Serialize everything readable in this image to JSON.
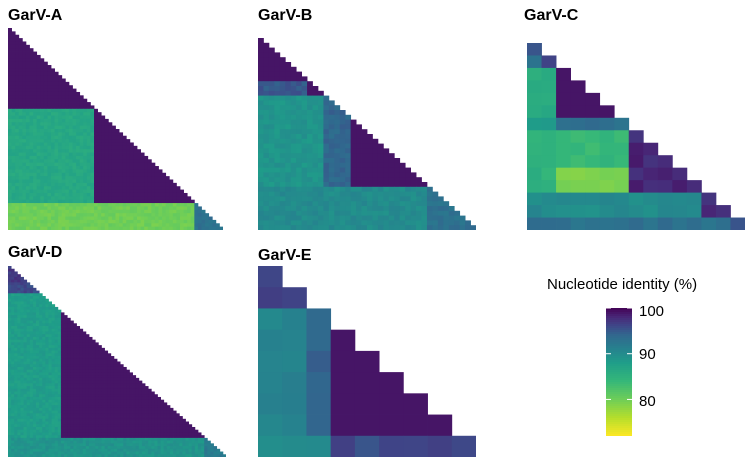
{
  "chart_data": {
    "type": "heatmap",
    "description_text": "Pairwise nucleotide identity heatmaps (lower triangle) for five GarV clades",
    "colormap": {
      "name": "viridis",
      "stops": [
        {
          "value": 72,
          "color": "#fde725"
        },
        {
          "value": 76,
          "color": "#b5de2b"
        },
        {
          "value": 80,
          "color": "#6ece58"
        },
        {
          "value": 84,
          "color": "#35b779"
        },
        {
          "value": 88,
          "color": "#1f9e89"
        },
        {
          "value": 91,
          "color": "#26828e"
        },
        {
          "value": 94,
          "color": "#31688e"
        },
        {
          "value": 96,
          "color": "#3e4989"
        },
        {
          "value": 98,
          "color": "#482878"
        },
        {
          "value": 100,
          "color": "#440154"
        }
      ]
    },
    "legend": {
      "title": "Nucleotide identity (%)",
      "min": 72,
      "max": 100,
      "ticks": [
        100,
        90,
        80
      ],
      "placement": "bottom-right"
    },
    "panels": [
      {
        "title": "GarV-A",
        "n": 60,
        "blocks": [
          {
            "row_start": 0,
            "row_end": 24,
            "col_start": 0,
            "col_end": 24,
            "value": 99
          },
          {
            "row_start": 24,
            "row_end": 52,
            "col_start": 0,
            "col_end": 24,
            "value": 86.5
          },
          {
            "row_start": 24,
            "row_end": 52,
            "col_start": 24,
            "col_end": 52,
            "value": 99
          },
          {
            "row_start": 52,
            "row_end": 60,
            "col_start": 0,
            "col_end": 52,
            "value": 80
          },
          {
            "row_start": 52,
            "row_end": 60,
            "col_start": 52,
            "col_end": 60,
            "value": 93
          }
        ]
      },
      {
        "title": "GarV-B",
        "n": 40,
        "blocks": [
          {
            "row_start": 0,
            "row_end": 9,
            "col_start": 0,
            "col_end": 9,
            "value": 99
          },
          {
            "row_start": 9,
            "row_end": 12,
            "col_start": 0,
            "col_end": 9,
            "value": 95
          },
          {
            "row_start": 9,
            "row_end": 12,
            "col_start": 9,
            "col_end": 12,
            "value": 99
          },
          {
            "row_start": 12,
            "row_end": 31,
            "col_start": 0,
            "col_end": 12,
            "value": 89
          },
          {
            "row_start": 12,
            "row_end": 31,
            "col_start": 12,
            "col_end": 17,
            "value": 94
          },
          {
            "row_start": 12,
            "row_end": 31,
            "col_start": 17,
            "col_end": 31,
            "value": 99
          },
          {
            "row_start": 31,
            "row_end": 40,
            "col_start": 0,
            "col_end": 31,
            "value": 90
          },
          {
            "row_start": 31,
            "row_end": 40,
            "col_start": 31,
            "col_end": 40,
            "value": 93
          }
        ]
      },
      {
        "title": "GarV-C",
        "n": 15,
        "blocks": [
          {
            "row_start": 0,
            "row_end": 1,
            "col_start": 0,
            "col_end": 1,
            "value": 96
          },
          {
            "row_start": 1,
            "row_end": 2,
            "col_start": 0,
            "col_end": 1,
            "value": 92
          },
          {
            "row_start": 1,
            "row_end": 2,
            "col_start": 1,
            "col_end": 2,
            "value": 96
          },
          {
            "row_start": 2,
            "row_end": 6,
            "col_start": 0,
            "col_end": 2,
            "value": 86
          },
          {
            "row_start": 2,
            "row_end": 6,
            "col_start": 2,
            "col_end": 6,
            "value": 99
          },
          {
            "row_start": 6,
            "row_end": 7,
            "col_start": 0,
            "col_end": 2,
            "value": 88
          },
          {
            "row_start": 6,
            "row_end": 7,
            "col_start": 2,
            "col_end": 7,
            "value": 93
          },
          {
            "row_start": 7,
            "row_end": 12,
            "col_start": 0,
            "col_end": 2,
            "value": 85
          },
          {
            "row_start": 7,
            "row_end": 12,
            "col_start": 2,
            "col_end": 7,
            "value": 84
          },
          {
            "row_start": 7,
            "row_end": 12,
            "col_start": 7,
            "col_end": 12,
            "value": 98
          },
          {
            "row_start": 10,
            "row_end": 12,
            "col_start": 2,
            "col_end": 7,
            "value": 79
          },
          {
            "row_start": 12,
            "row_end": 14,
            "col_start": 0,
            "col_end": 12,
            "value": 90
          },
          {
            "row_start": 12,
            "row_end": 14,
            "col_start": 12,
            "col_end": 14,
            "value": 98
          },
          {
            "row_start": 14,
            "row_end": 15,
            "col_start": 0,
            "col_end": 14,
            "value": 93
          },
          {
            "row_start": 14,
            "row_end": 15,
            "col_start": 14,
            "col_end": 15,
            "value": 96
          }
        ]
      },
      {
        "title": "GarV-D",
        "n": 70,
        "blocks": [
          {
            "row_start": 0,
            "row_end": 6,
            "col_start": 0,
            "col_end": 6,
            "value": 97
          },
          {
            "row_start": 6,
            "row_end": 10,
            "col_start": 0,
            "col_end": 10,
            "value": 96
          },
          {
            "row_start": 10,
            "row_end": 63,
            "col_start": 0,
            "col_end": 17,
            "value": 88
          },
          {
            "row_start": 10,
            "row_end": 63,
            "col_start": 17,
            "col_end": 63,
            "value": 99
          },
          {
            "row_start": 63,
            "row_end": 70,
            "col_start": 0,
            "col_end": 63,
            "value": 89
          },
          {
            "row_start": 63,
            "row_end": 70,
            "col_start": 63,
            "col_end": 70,
            "value": 92
          }
        ]
      },
      {
        "title": "GarV-E",
        "n": 9,
        "blocks": [
          {
            "row_start": 0,
            "row_end": 1,
            "col_start": 0,
            "col_end": 1,
            "value": 97
          },
          {
            "row_start": 1,
            "row_end": 2,
            "col_start": 0,
            "col_end": 2,
            "value": 96
          },
          {
            "row_start": 2,
            "row_end": 8,
            "col_start": 0,
            "col_end": 2,
            "value": 91
          },
          {
            "row_start": 2,
            "row_end": 8,
            "col_start": 2,
            "col_end": 3,
            "value": 94
          },
          {
            "row_start": 3,
            "row_end": 8,
            "col_start": 3,
            "col_end": 8,
            "value": 99
          },
          {
            "row_start": 8,
            "row_end": 9,
            "col_start": 0,
            "col_end": 3,
            "value": 90
          },
          {
            "row_start": 8,
            "row_end": 9,
            "col_start": 3,
            "col_end": 9,
            "value": 96
          }
        ]
      }
    ]
  }
}
